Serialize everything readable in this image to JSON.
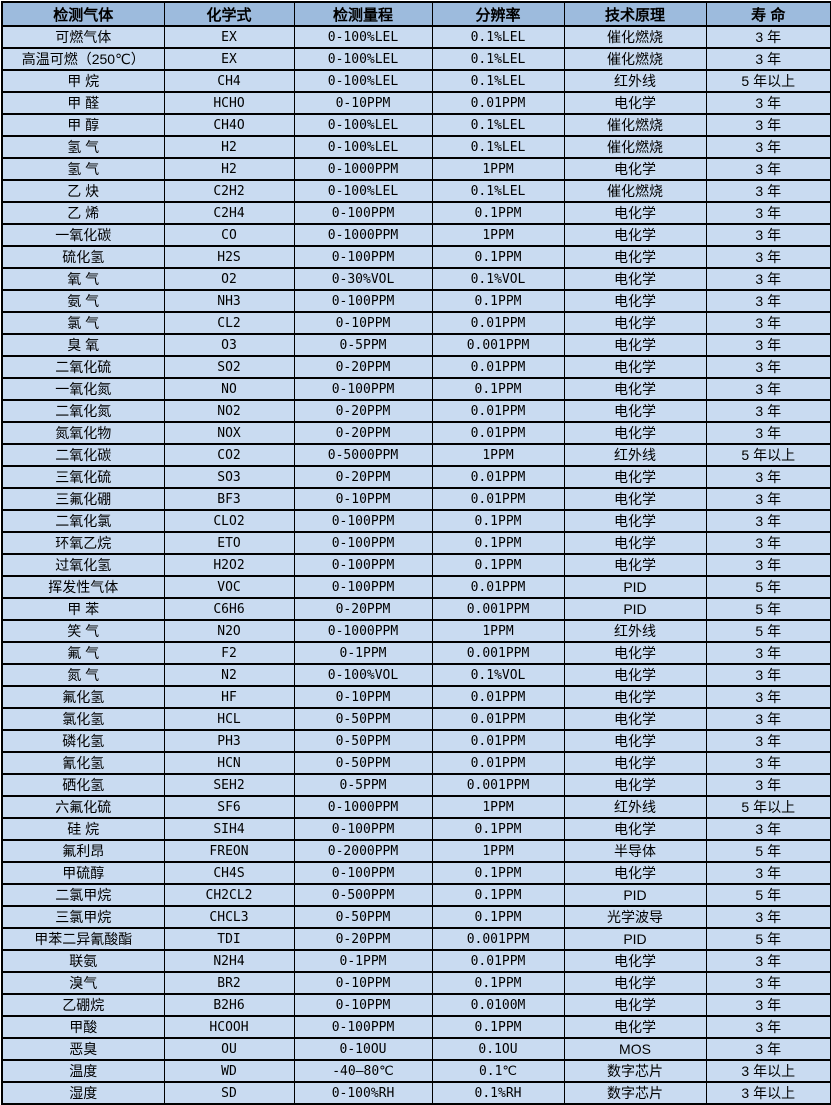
{
  "colors": {
    "header_bg": "#9dbbdd",
    "row_bg": "#c9dbf1",
    "border": "#000000",
    "text": "#000000"
  },
  "chart_data": {
    "type": "table",
    "title": "",
    "headers": [
      "检测气体",
      "化学式",
      "检测量程",
      "分辨率",
      "技术原理",
      "寿 命"
    ],
    "column_keys": [
      "gas-name",
      "chemical-formula",
      "detection-range",
      "resolution",
      "technology",
      "lifespan"
    ],
    "rows": [
      [
        "可燃气体",
        "EX",
        "0-100%LEL",
        "0.1%LEL",
        "催化燃烧",
        "3 年"
      ],
      [
        "高温可燃（250℃）",
        "EX",
        "0-100%LEL",
        "0.1%LEL",
        "催化燃烧",
        "3 年"
      ],
      [
        "甲 烷",
        "CH4",
        "0-100%LEL",
        "0.1%LEL",
        "红外线",
        "5 年以上"
      ],
      [
        "甲 醛",
        "HCHO",
        "0-10PPM",
        "0.01PPM",
        "电化学",
        "3 年"
      ],
      [
        "甲 醇",
        "CH4O",
        "0-100%LEL",
        "0.1%LEL",
        "催化燃烧",
        "3 年"
      ],
      [
        "氢 气",
        "H2",
        "0-100%LEL",
        "0.1%LEL",
        "催化燃烧",
        "3 年"
      ],
      [
        "氢 气",
        "H2",
        "0-1000PPM",
        "1PPM",
        "电化学",
        "3 年"
      ],
      [
        "乙 炔",
        "C2H2",
        "0-100%LEL",
        "0.1%LEL",
        "催化燃烧",
        "3 年"
      ],
      [
        "乙 烯",
        "C2H4",
        "0-100PPM",
        "0.1PPM",
        "电化学",
        "3 年"
      ],
      [
        "一氧化碳",
        "CO",
        "0-1000PPM",
        "1PPM",
        "电化学",
        "3 年"
      ],
      [
        "硫化氢",
        "H2S",
        "0-100PPM",
        "0.1PPM",
        "电化学",
        "3 年"
      ],
      [
        "氧 气",
        "O2",
        "0-30%VOL",
        "0.1%VOL",
        "电化学",
        "3 年"
      ],
      [
        "氨 气",
        "NH3",
        "0-100PPM",
        "0.1PPM",
        "电化学",
        "3 年"
      ],
      [
        "氯 气",
        "CL2",
        "0-10PPM",
        "0.01PPM",
        "电化学",
        "3 年"
      ],
      [
        "臭 氧",
        "O3",
        "0-5PPM",
        "0.001PPM",
        "电化学",
        "3 年"
      ],
      [
        "二氧化硫",
        "SO2",
        "0-20PPM",
        "0.01PPM",
        "电化学",
        "3 年"
      ],
      [
        "一氧化氮",
        "NO",
        "0-100PPM",
        "0.1PPM",
        "电化学",
        "3 年"
      ],
      [
        "二氧化氮",
        "NO2",
        "0-20PPM",
        "0.01PPM",
        "电化学",
        "3 年"
      ],
      [
        "氮氧化物",
        "NOX",
        "0-20PPM",
        "0.01PPM",
        "电化学",
        "3 年"
      ],
      [
        "二氧化碳",
        "CO2",
        "0-5000PPM",
        "1PPM",
        "红外线",
        "5 年以上"
      ],
      [
        "三氧化硫",
        "SO3",
        "0-20PPM",
        "0.01PPM",
        "电化学",
        "3 年"
      ],
      [
        "三氟化硼",
        "BF3",
        "0-10PPM",
        "0.01PPM",
        "电化学",
        "3 年"
      ],
      [
        "二氧化氯",
        "CLO2",
        "0-100PPM",
        "0.1PPM",
        "电化学",
        "3 年"
      ],
      [
        "环氧乙烷",
        "ETO",
        "0-100PPM",
        "0.1PPM",
        "电化学",
        "3 年"
      ],
      [
        "过氧化氢",
        "H2O2",
        "0-100PPM",
        "0.1PPM",
        "电化学",
        "3 年"
      ],
      [
        "挥发性气体",
        "VOC",
        "0-100PPM",
        "0.01PPM",
        "PID",
        "5 年"
      ],
      [
        "甲 苯",
        "C6H6",
        "0-20PPM",
        "0.001PPM",
        "PID",
        "5 年"
      ],
      [
        "笑 气",
        "N2O",
        "0-1000PPM",
        "1PPM",
        "红外线",
        "5 年"
      ],
      [
        "氟 气",
        "F2",
        "0-1PPM",
        "0.001PPM",
        "电化学",
        "3 年"
      ],
      [
        "氮 气",
        "N2",
        "0-100%VOL",
        "0.1%VOL",
        "电化学",
        "3 年"
      ],
      [
        "氟化氢",
        "HF",
        "0-10PPM",
        "0.01PPM",
        "电化学",
        "3 年"
      ],
      [
        "氯化氢",
        "HCL",
        "0-50PPM",
        "0.01PPM",
        "电化学",
        "3 年"
      ],
      [
        "磷化氢",
        "PH3",
        "0-50PPM",
        "0.01PPM",
        "电化学",
        "3 年"
      ],
      [
        "氰化氢",
        "HCN",
        "0-50PPM",
        "0.01PPM",
        "电化学",
        "3 年"
      ],
      [
        "硒化氢",
        "SEH2",
        "0-5PPM",
        "0.001PPM",
        "电化学",
        "3 年"
      ],
      [
        "六氟化硫",
        "SF6",
        "0-1000PPM",
        "1PPM",
        "红外线",
        "5 年以上"
      ],
      [
        "硅 烷",
        "SIH4",
        "0-100PPM",
        "0.1PPM",
        "电化学",
        "3 年"
      ],
      [
        "氟利昂",
        "FREON",
        "0-2000PPM",
        "1PPM",
        "半导体",
        "5 年"
      ],
      [
        "甲硫醇",
        "CH4S",
        "0-100PPM",
        "0.1PPM",
        "电化学",
        "3 年"
      ],
      [
        "二氯甲烷",
        "CH2CL2",
        "0-500PPM",
        "0.1PPM",
        "PID",
        "5 年"
      ],
      [
        "三氯甲烷",
        "CHCL3",
        "0-50PPM",
        "0.1PPM",
        "光学波导",
        "3 年"
      ],
      [
        "甲苯二异氰酸酯",
        "TDI",
        "0-20PPM",
        "0.001PPM",
        "PID",
        "5 年"
      ],
      [
        "联氨",
        "N2H4",
        "0-1PPM",
        "0.01PPM",
        "电化学",
        "3 年"
      ],
      [
        "溴气",
        "BR2",
        "0-10PPM",
        "0.1PPM",
        "电化学",
        "3 年"
      ],
      [
        "乙硼烷",
        "B2H6",
        "0-10PPM",
        "0.0100M",
        "电化学",
        "3 年"
      ],
      [
        "甲酸",
        "HCOOH",
        "0-100PPM",
        "0.1PPM",
        "电化学",
        "3 年"
      ],
      [
        "恶臭",
        "OU",
        "0-10OU",
        "0.1OU",
        "MOS",
        "3 年"
      ],
      [
        "温度",
        "WD",
        "-40—80℃",
        "0.1℃",
        "数字芯片",
        "3 年以上"
      ],
      [
        "湿度",
        "SD",
        "0-100%RH",
        "0.1%RH",
        "数字芯片",
        "3 年以上"
      ]
    ]
  }
}
